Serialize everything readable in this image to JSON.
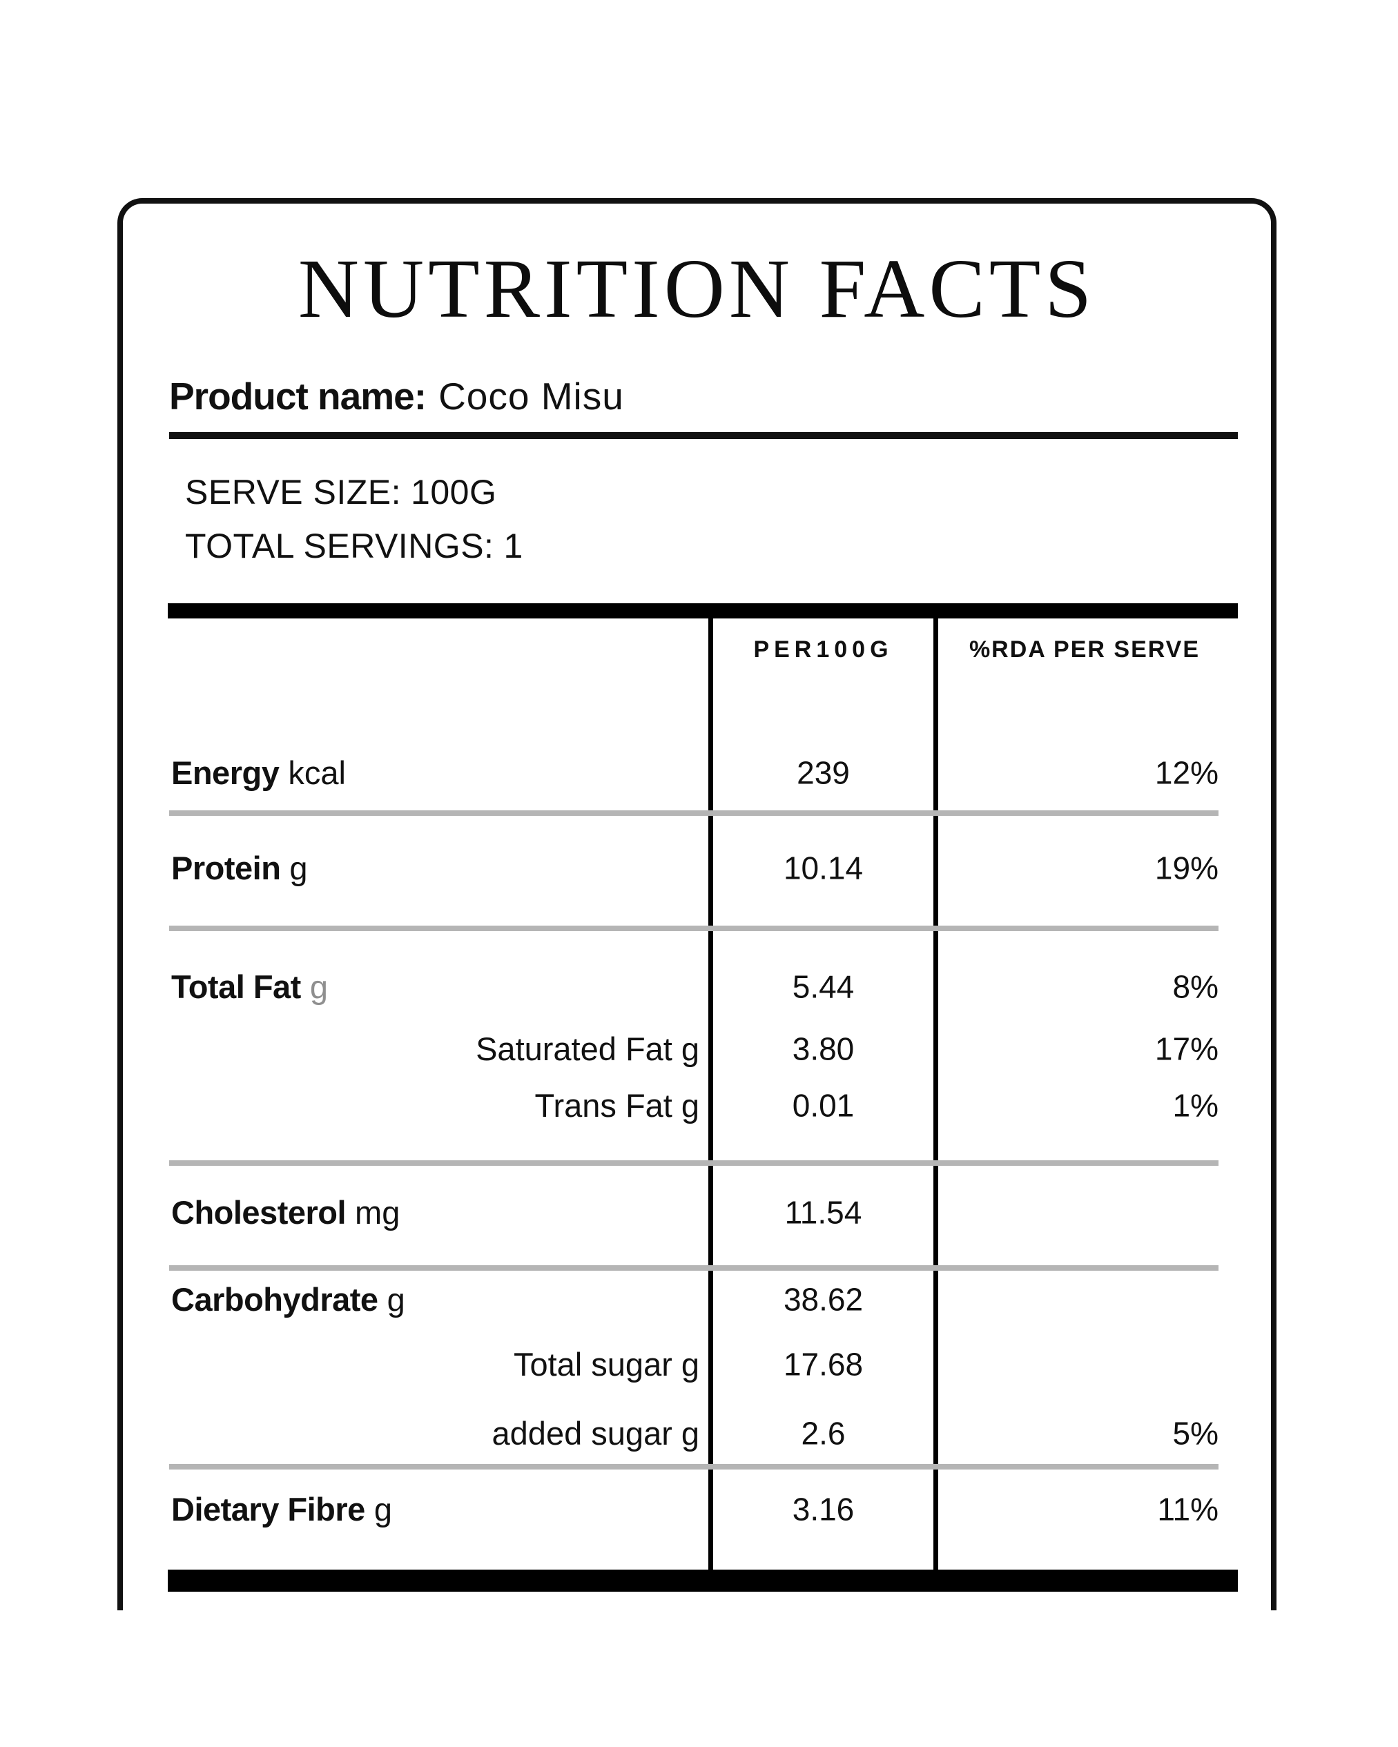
{
  "colors": {
    "text": "#111111",
    "border": "#111111",
    "bar": "#000000",
    "separator": "#b5b5b5",
    "muted_unit": "#8f8f8f",
    "background": "#ffffff"
  },
  "label_card": {
    "title": "NUTRITION FACTS",
    "product": {
      "label": "Product name:",
      "value": "Coco Misu"
    },
    "serving_info": {
      "serve_size_label": "SERVE SIZE:",
      "serve_size_value": "100G",
      "total_servings_label": "TOTAL SERVINGS:",
      "total_servings_value": "1"
    },
    "table": {
      "columns": [
        {
          "key": "per_100g",
          "label": "PER100G"
        },
        {
          "key": "rda_per_serve",
          "label": "%RDA PER SERVE"
        }
      ],
      "rows": [
        {
          "key": "energy",
          "label": "Energy",
          "unit": "kcal",
          "indent": false,
          "unit_muted": false,
          "per_100g": "239",
          "rda_per_serve": "12%"
        },
        {
          "key": "protein",
          "label": "Protein",
          "unit": "g",
          "indent": false,
          "unit_muted": false,
          "per_100g": "10.14",
          "rda_per_serve": "19%"
        },
        {
          "key": "total-fat",
          "label": "Total Fat",
          "unit": "g",
          "indent": false,
          "unit_muted": true,
          "per_100g": "5.44",
          "rda_per_serve": "8%"
        },
        {
          "key": "saturated-fat",
          "label": "Saturated Fat",
          "unit": "g",
          "indent": true,
          "unit_muted": false,
          "per_100g": "3.80",
          "rda_per_serve": "17%"
        },
        {
          "key": "trans-fat",
          "label": "Trans Fat",
          "unit": "g",
          "indent": true,
          "unit_muted": false,
          "per_100g": "0.01",
          "rda_per_serve": "1%"
        },
        {
          "key": "cholesterol",
          "label": "Cholesterol",
          "unit": "mg",
          "indent": false,
          "unit_muted": false,
          "per_100g": "11.54",
          "rda_per_serve": ""
        },
        {
          "key": "carbohydrate",
          "label": "Carbohydrate",
          "unit": "g",
          "indent": false,
          "unit_muted": false,
          "per_100g": "38.62",
          "rda_per_serve": ""
        },
        {
          "key": "total-sugar",
          "label": "Total sugar",
          "unit": "g",
          "indent": true,
          "unit_muted": false,
          "per_100g": "17.68",
          "rda_per_serve": ""
        },
        {
          "key": "added-sugar",
          "label": "added sugar",
          "unit": "g",
          "indent": true,
          "unit_muted": false,
          "per_100g": "2.6",
          "rda_per_serve": "5%"
        },
        {
          "key": "dietary-fibre",
          "label": "Dietary Fibre",
          "unit": "g",
          "indent": false,
          "unit_muted": false,
          "per_100g": "3.16",
          "rda_per_serve": "11%"
        }
      ]
    }
  }
}
